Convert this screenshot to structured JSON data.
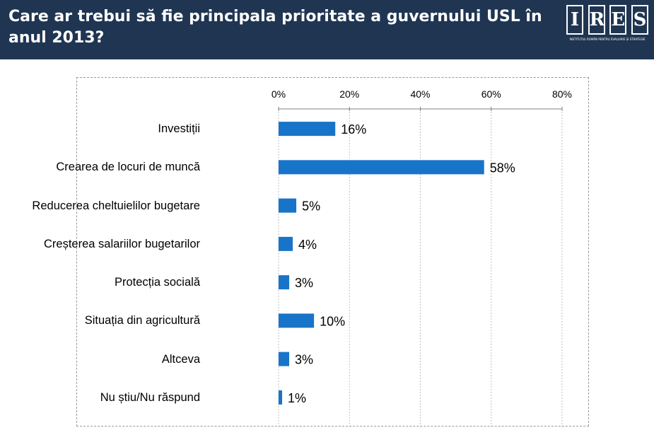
{
  "header": {
    "title": "Care ar trebui să fie principala prioritate a guvernului USL în anul 2013?",
    "logo_letters": [
      "I",
      "R",
      "E",
      "S"
    ],
    "logo_subtitle": "INSTITUTUL ROMÂN PENTRU EVALUARE ȘI STRATEGIE"
  },
  "colors": {
    "header_bg": "#1f3552",
    "bar": "#1874c8",
    "gridline": "#bfbfbf"
  },
  "chart_data": {
    "type": "bar",
    "orientation": "horizontal",
    "title": "Care ar trebui să fie principala prioritate a guvernului USL în anul 2013?",
    "categories": [
      "Investiții",
      "Crearea de locuri de muncă",
      "Reducerea cheltuielilor bugetare",
      "Creșterea salariilor bugetarilor",
      "Protecția socială",
      "Situația din agricultură",
      "Altceva",
      "Nu știu/Nu răspund"
    ],
    "values": [
      16,
      58,
      5,
      4,
      3,
      10,
      3,
      1
    ],
    "value_labels": [
      "16%",
      "58%",
      "5%",
      "4%",
      "3%",
      "10%",
      "3%",
      "1%"
    ],
    "xlim": [
      0,
      80
    ],
    "ticks": [
      0,
      20,
      40,
      60,
      80
    ],
    "tick_labels": [
      "0%",
      "20%",
      "40%",
      "60%",
      "80%"
    ],
    "axis_position": "top",
    "grid": true,
    "xlabel": "",
    "ylabel": ""
  }
}
